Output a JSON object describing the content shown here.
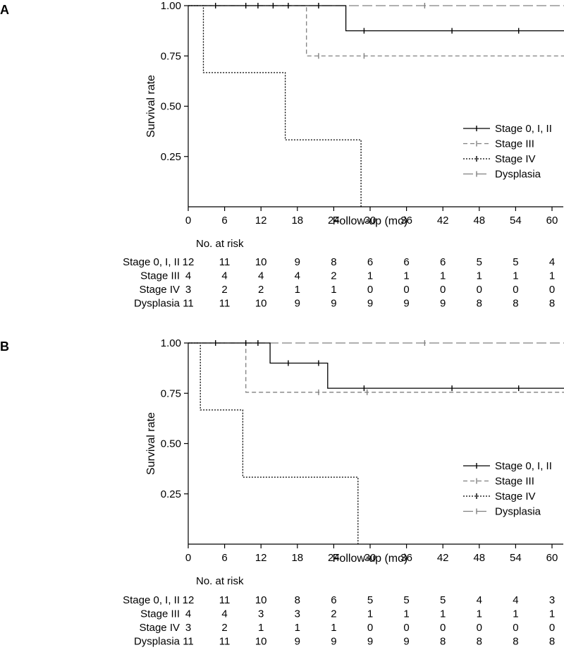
{
  "chart_data": [
    {
      "type": "line",
      "subtype": "kaplan-meier",
      "panel": "A",
      "xlabel": "Follow-up (mo)",
      "ylabel": "Survival rate",
      "xlim": [
        0,
        63
      ],
      "ylim": [
        0,
        1
      ],
      "xticks": [
        0,
        6,
        12,
        18,
        24,
        30,
        36,
        42,
        48,
        54,
        60
      ],
      "yticks": [
        1.0,
        0.75,
        0.5,
        0.25
      ],
      "ytick_labels": [
        "1.00",
        "0.75",
        "0.50",
        "0.25"
      ],
      "legend_position": "right",
      "series": [
        {
          "name": "Stage 0, I, II",
          "color": "#000000",
          "dash": "",
          "steps": [
            [
              0,
              1.0
            ],
            [
              26,
              0.875
            ],
            [
              63,
              0.875
            ]
          ],
          "censor": [
            [
              4.5,
              1.0
            ],
            [
              9.5,
              1.0
            ],
            [
              11.5,
              1.0
            ],
            [
              14,
              1.0
            ],
            [
              16.5,
              1.0
            ],
            [
              21.5,
              1.0
            ],
            [
              29,
              0.875
            ],
            [
              43.5,
              0.875
            ],
            [
              54.5,
              0.875
            ]
          ]
        },
        {
          "name": "Stage III",
          "color": "#808080",
          "dash": "6,4",
          "steps": [
            [
              0,
              1.0
            ],
            [
              19.5,
              0.75
            ],
            [
              63,
              0.75
            ]
          ],
          "censor": [
            [
              21.5,
              0.75
            ],
            [
              29,
              0.75
            ]
          ]
        },
        {
          "name": "Stage IV",
          "color": "#000000",
          "dash": "2,2",
          "steps": [
            [
              0,
              1.0
            ],
            [
              2.5,
              0.667
            ],
            [
              16,
              0.333
            ],
            [
              28.5,
              0.0
            ]
          ],
          "censor": []
        },
        {
          "name": "Dysplasia",
          "color": "#808080",
          "dash": "14,5",
          "steps": [
            [
              0,
              1.0
            ],
            [
              63,
              1.0
            ]
          ],
          "censor": [
            [
              39,
              1.0
            ]
          ]
        }
      ],
      "risk_table": {
        "title": "No. at risk",
        "rows": [
          {
            "label": "Stage 0, I, II",
            "values": [
              "12",
              "11",
              "10",
              "9",
              "8",
              "6",
              "6",
              "6",
              "5",
              "5",
              "4"
            ]
          },
          {
            "label": "Stage III",
            "values": [
              "4",
              "4",
              "4",
              "4",
              "2",
              "1",
              "1",
              "1",
              "1",
              "1",
              "1"
            ]
          },
          {
            "label": "Stage IV",
            "values": [
              "3",
              "2",
              "2",
              "1",
              "1",
              "0",
              "0",
              "0",
              "0",
              "0",
              "0"
            ]
          },
          {
            "label": "Dysplasia",
            "values": [
              "11",
              "11",
              "10",
              "9",
              "9",
              "9",
              "9",
              "9",
              "8",
              "8",
              "8"
            ]
          }
        ]
      }
    },
    {
      "type": "line",
      "subtype": "kaplan-meier",
      "panel": "B",
      "xlabel": "Follow-up (mo)",
      "ylabel": "Survival rate",
      "xlim": [
        0,
        63
      ],
      "ylim": [
        0,
        1
      ],
      "xticks": [
        0,
        6,
        12,
        18,
        24,
        30,
        36,
        42,
        48,
        54,
        60
      ],
      "yticks": [
        1.0,
        0.75,
        0.5,
        0.25
      ],
      "ytick_labels": [
        "1.00",
        "0.75",
        "0.50",
        "0.25"
      ],
      "legend_position": "right",
      "series": [
        {
          "name": "Stage 0, I, II",
          "color": "#000000",
          "dash": "",
          "steps": [
            [
              0,
              1.0
            ],
            [
              13.5,
              0.9
            ],
            [
              23,
              0.775
            ],
            [
              63,
              0.775
            ]
          ],
          "censor": [
            [
              4.5,
              1.0
            ],
            [
              9.5,
              1.0
            ],
            [
              11.5,
              1.0
            ],
            [
              16.5,
              0.9
            ],
            [
              21.5,
              0.9
            ],
            [
              29,
              0.775
            ],
            [
              43.5,
              0.775
            ],
            [
              54.5,
              0.775
            ]
          ]
        },
        {
          "name": "Stage III",
          "color": "#808080",
          "dash": "6,4",
          "steps": [
            [
              0,
              1.0
            ],
            [
              9.5,
              0.755
            ],
            [
              63,
              0.755
            ]
          ],
          "censor": [
            [
              21.5,
              0.755
            ],
            [
              29.5,
              0.755
            ]
          ]
        },
        {
          "name": "Stage IV",
          "color": "#000000",
          "dash": "2,2",
          "steps": [
            [
              0,
              1.0
            ],
            [
              2,
              0.667
            ],
            [
              9,
              0.333
            ],
            [
              28,
              0.0
            ]
          ],
          "censor": []
        },
        {
          "name": "Dysplasia",
          "color": "#808080",
          "dash": "14,5",
          "steps": [
            [
              0,
              1.0
            ],
            [
              63,
              1.0
            ]
          ],
          "censor": [
            [
              39,
              1.0
            ]
          ]
        }
      ],
      "risk_table": {
        "title": "No. at risk",
        "rows": [
          {
            "label": "Stage 0, I, II",
            "values": [
              "12",
              "11",
              "10",
              "8",
              "6",
              "5",
              "5",
              "5",
              "4",
              "4",
              "3"
            ]
          },
          {
            "label": "Stage III",
            "values": [
              "4",
              "4",
              "3",
              "3",
              "2",
              "1",
              "1",
              "1",
              "1",
              "1",
              "1"
            ]
          },
          {
            "label": "Stage IV",
            "values": [
              "3",
              "2",
              "1",
              "1",
              "1",
              "0",
              "0",
              "0",
              "0",
              "0",
              "0"
            ]
          },
          {
            "label": "Dysplasia",
            "values": [
              "11",
              "11",
              "10",
              "9",
              "9",
              "9",
              "9",
              "8",
              "8",
              "8",
              "8"
            ]
          }
        ]
      }
    }
  ]
}
